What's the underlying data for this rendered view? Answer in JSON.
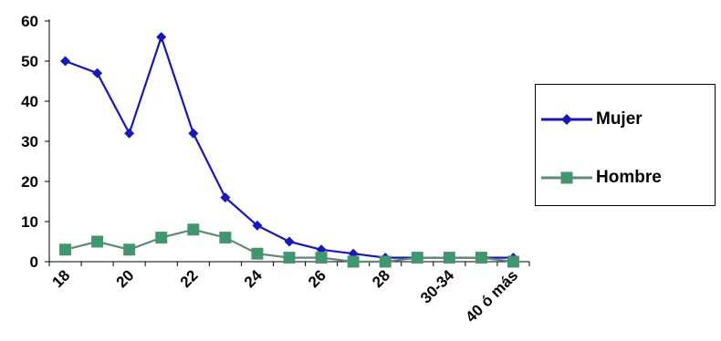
{
  "chart_data": {
    "type": "line",
    "x_tick_labels": [
      "18",
      "20",
      "22",
      "24",
      "26",
      "28",
      "30-34",
      "40 ó más"
    ],
    "y_tick_labels": [
      "0",
      "10",
      "20",
      "30",
      "40",
      "50",
      "60"
    ],
    "ylim": [
      0,
      60
    ],
    "grid": false,
    "legend_position": "right",
    "series": [
      {
        "name": "Mujer",
        "color": "#1616c4",
        "marker": "diamond",
        "values": [
          50,
          47,
          32,
          56,
          32,
          16,
          9,
          5,
          3,
          2,
          1,
          1,
          1,
          1,
          1
        ]
      },
      {
        "name": "Hombre",
        "color": "#5a8a78",
        "marker_color": "#3b9a6b",
        "marker": "square",
        "values": [
          3,
          5,
          3,
          6,
          8,
          6,
          2,
          1,
          1,
          0,
          0,
          1,
          1,
          1,
          0
        ]
      }
    ]
  }
}
